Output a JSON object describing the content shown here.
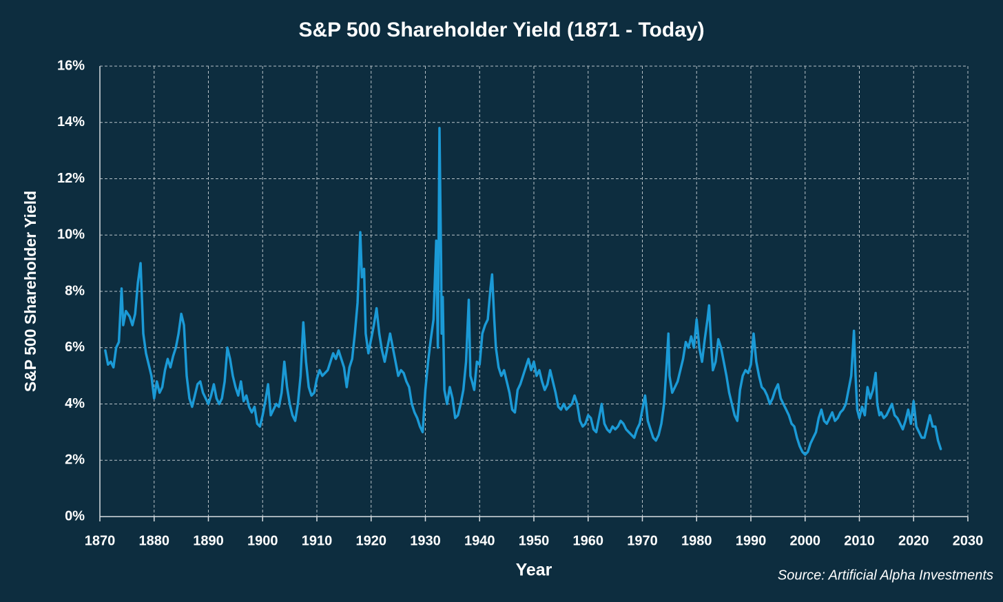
{
  "chart_data": {
    "type": "line",
    "title": "S&P 500 Shareholder Yield (1871 - Today)",
    "x_label": "Year",
    "y_label": "S&P 500 Shareholder Yield",
    "annotation": "Source: Artificial Alpha Investments",
    "xlim": [
      1870,
      2030
    ],
    "xticks": [
      1870,
      1880,
      1890,
      1900,
      1910,
      1920,
      1930,
      1940,
      1950,
      1960,
      1970,
      1980,
      1990,
      2000,
      2010,
      2020,
      2030
    ],
    "ylim": [
      0,
      16
    ],
    "yticks": [
      {
        "value": 0,
        "label": "0%"
      },
      {
        "value": 2,
        "label": "2%"
      },
      {
        "value": 4,
        "label": "4%"
      },
      {
        "value": 6,
        "label": "6%"
      },
      {
        "value": 8,
        "label": "8%"
      },
      {
        "value": 10,
        "label": "10%"
      },
      {
        "value": 12,
        "label": "12%"
      },
      {
        "value": 14,
        "label": "14%"
      },
      {
        "value": 16,
        "label": "16%"
      }
    ],
    "grid": true,
    "x": [
      1871,
      1871.5,
      1872,
      1872.5,
      1873,
      1873.5,
      1874,
      1874.3,
      1874.8,
      1875.5,
      1876,
      1876.5,
      1877,
      1877.5,
      1878,
      1878.5,
      1879,
      1879.5,
      1880,
      1880.5,
      1881,
      1881.5,
      1882,
      1882.5,
      1883,
      1883.5,
      1884,
      1884.5,
      1885,
      1885.5,
      1886,
      1886.5,
      1887,
      1887.5,
      1888,
      1888.5,
      1889,
      1889.5,
      1890,
      1890.5,
      1891,
      1891.5,
      1892,
      1892.5,
      1893,
      1893.5,
      1894,
      1894.5,
      1895,
      1895.5,
      1896,
      1896.5,
      1897,
      1897.5,
      1898,
      1898.5,
      1899,
      1899.5,
      1900,
      1900.5,
      1901,
      1901.5,
      1902,
      1902.5,
      1903,
      1903.5,
      1904,
      1904.5,
      1905,
      1905.5,
      1906,
      1906.5,
      1907,
      1907.5,
      1908,
      1908.5,
      1909,
      1909.5,
      1910,
      1910.5,
      1911,
      1911.5,
      1912,
      1912.5,
      1913,
      1913.5,
      1914,
      1914.5,
      1915,
      1915.5,
      1916,
      1916.5,
      1917,
      1917.5,
      1918,
      1918.3,
      1918.7,
      1919,
      1919.5,
      1920,
      1920.5,
      1921,
      1921.5,
      1922,
      1922.5,
      1923,
      1923.5,
      1924,
      1924.5,
      1925,
      1925.5,
      1926,
      1926.5,
      1927,
      1927.5,
      1928,
      1928.5,
      1929,
      1929.5,
      1930,
      1930.5,
      1931,
      1931.5,
      1932,
      1932.3,
      1932.6,
      1932.9,
      1933,
      1933.2,
      1933.5,
      1934,
      1934.5,
      1935,
      1935.5,
      1936,
      1936.5,
      1937,
      1937.5,
      1938,
      1938.3,
      1938.6,
      1939,
      1939.5,
      1940,
      1940.5,
      1941,
      1941.5,
      1942,
      1942.3,
      1942.7,
      1943,
      1943.5,
      1944,
      1944.5,
      1945,
      1945.5,
      1946,
      1946.5,
      1947,
      1947.5,
      1948,
      1948.5,
      1949,
      1949.5,
      1950,
      1950.5,
      1951,
      1951.5,
      1952,
      1952.5,
      1953,
      1953.5,
      1954,
      1954.5,
      1955,
      1955.5,
      1956,
      1956.5,
      1957,
      1957.5,
      1958,
      1958.5,
      1959,
      1959.5,
      1960,
      1960.5,
      1961,
      1961.5,
      1962,
      1962.5,
      1963,
      1963.5,
      1964,
      1964.5,
      1965,
      1965.5,
      1966,
      1966.5,
      1967,
      1967.5,
      1968,
      1968.5,
      1969,
      1969.5,
      1970,
      1970.5,
      1971,
      1971.5,
      1972,
      1972.5,
      1973,
      1973.5,
      1974,
      1974.5,
      1974.8,
      1975,
      1975.5,
      1976,
      1976.5,
      1977,
      1977.5,
      1978,
      1978.5,
      1979,
      1979.5,
      1980,
      1980.5,
      1981,
      1981.5,
      1982,
      1982.3,
      1982.7,
      1983,
      1983.5,
      1984,
      1984.5,
      1985,
      1985.5,
      1986,
      1986.5,
      1987,
      1987.5,
      1988,
      1988.5,
      1989,
      1989.5,
      1990,
      1990.5,
      1991,
      1991.5,
      1992,
      1992.5,
      1993,
      1993.5,
      1994,
      1994.5,
      1995,
      1995.5,
      1996,
      1996.5,
      1997,
      1997.5,
      1998,
      1998.5,
      1999,
      1999.5,
      2000,
      2000.5,
      2001,
      2001.5,
      2002,
      2002.5,
      2003,
      2003.5,
      2004,
      2004.5,
      2005,
      2005.5,
      2006,
      2006.5,
      2007,
      2007.5,
      2008,
      2008.5,
      2009,
      2009.3,
      2009.6,
      2010,
      2010.5,
      2011,
      2011.5,
      2012,
      2012.5,
      2013,
      2013.3,
      2013.7,
      2014,
      2014.5,
      2015,
      2015.5,
      2016,
      2016.5,
      2017,
      2017.5,
      2018,
      2018.5,
      2019,
      2019.5,
      2020,
      2020.5,
      2021,
      2021.5,
      2022,
      2022.5,
      2023,
      2023.5,
      2024,
      2024.5,
      2025
    ],
    "series": [
      {
        "color": "#1b9ad6",
        "values": [
          5.9,
          5.4,
          5.5,
          5.3,
          6.0,
          6.2,
          8.1,
          6.8,
          7.3,
          7.1,
          6.8,
          7.2,
          8.3,
          9.0,
          6.5,
          5.8,
          5.4,
          5.0,
          4.2,
          4.8,
          4.4,
          4.6,
          5.2,
          5.6,
          5.3,
          5.7,
          6.0,
          6.5,
          7.2,
          6.8,
          5.0,
          4.2,
          3.9,
          4.3,
          4.7,
          4.8,
          4.4,
          4.2,
          4.0,
          4.3,
          4.7,
          4.2,
          4.0,
          4.2,
          4.8,
          6.0,
          5.6,
          5.0,
          4.6,
          4.3,
          4.8,
          4.1,
          4.3,
          3.9,
          3.7,
          3.9,
          3.3,
          3.2,
          3.6,
          4.1,
          4.7,
          3.6,
          3.8,
          4.0,
          3.9,
          4.4,
          5.5,
          4.6,
          4.0,
          3.6,
          3.4,
          4.0,
          5.0,
          6.9,
          5.5,
          4.6,
          4.3,
          4.4,
          4.9,
          5.2,
          5.0,
          5.1,
          5.2,
          5.5,
          5.8,
          5.6,
          5.9,
          5.6,
          5.3,
          4.6,
          5.3,
          5.6,
          6.5,
          7.6,
          10.1,
          8.5,
          8.8,
          6.5,
          5.8,
          6.3,
          6.8,
          7.4,
          6.5,
          5.9,
          5.5,
          6.0,
          6.5,
          6.0,
          5.5,
          5.0,
          5.2,
          5.1,
          4.8,
          4.6,
          4.0,
          3.7,
          3.5,
          3.2,
          3.0,
          4.5,
          5.5,
          6.3,
          7.0,
          9.8,
          6.0,
          13.8,
          9.0,
          6.5,
          7.8,
          4.5,
          4.0,
          4.6,
          4.2,
          3.5,
          3.6,
          4.0,
          4.5,
          5.5,
          7.7,
          5.0,
          4.8,
          4.5,
          5.5,
          5.4,
          6.5,
          6.8,
          7.0,
          8.1,
          8.6,
          7.0,
          6.0,
          5.3,
          5.0,
          5.2,
          4.8,
          4.4,
          3.8,
          3.7,
          4.5,
          4.7,
          5.0,
          5.3,
          5.6,
          5.2,
          5.5,
          5.0,
          5.2,
          4.8,
          4.5,
          4.7,
          5.2,
          4.8,
          4.4,
          3.9,
          3.8,
          4.0,
          3.8,
          3.9,
          4.0,
          4.3,
          4.0,
          3.4,
          3.2,
          3.3,
          3.6,
          3.5,
          3.1,
          3.0,
          3.5,
          4.0,
          3.3,
          3.1,
          3.0,
          3.2,
          3.1,
          3.2,
          3.4,
          3.3,
          3.1,
          3.0,
          2.9,
          2.8,
          3.1,
          3.3,
          3.8,
          4.3,
          3.4,
          3.1,
          2.8,
          2.7,
          2.9,
          3.3,
          4.0,
          5.5,
          6.5,
          5.0,
          4.4,
          4.6,
          4.8,
          5.2,
          5.6,
          6.2,
          6.0,
          6.4,
          6.0,
          7.0,
          6.0,
          5.5,
          6.3,
          7.0,
          7.5,
          6.0,
          5.2,
          5.5,
          6.3,
          6.0,
          5.5,
          5.0,
          4.4,
          4.0,
          3.6,
          3.4,
          4.5,
          5.0,
          5.2,
          5.1,
          5.4,
          6.5,
          5.5,
          5.0,
          4.6,
          4.5,
          4.3,
          4.0,
          4.2,
          4.5,
          4.7,
          4.2,
          4.0,
          3.8,
          3.6,
          3.3,
          3.2,
          2.8,
          2.5,
          2.3,
          2.2,
          2.3,
          2.6,
          2.8,
          3.0,
          3.5,
          3.8,
          3.4,
          3.3,
          3.5,
          3.7,
          3.4,
          3.5,
          3.7,
          3.8,
          4.0,
          4.5,
          5.0,
          6.6,
          5.0,
          3.8,
          3.5,
          3.9,
          3.6,
          4.6,
          4.2,
          4.5,
          5.1,
          4.0,
          3.6,
          3.7,
          3.5,
          3.6,
          3.8,
          4.0,
          3.6,
          3.5,
          3.3,
          3.1,
          3.4,
          3.8,
          3.3,
          4.1,
          3.2,
          3.0,
          2.8,
          2.8,
          3.2,
          3.6,
          3.2,
          3.2,
          2.7,
          2.4
        ]
      }
    ]
  }
}
